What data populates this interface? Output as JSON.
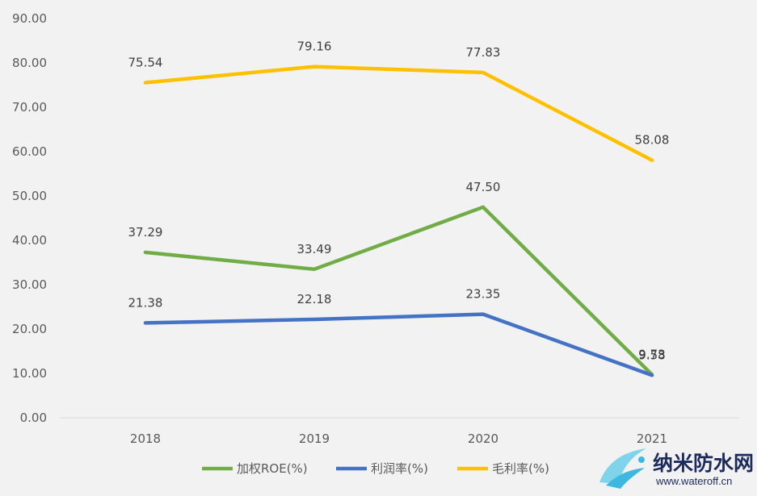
{
  "chart_data": {
    "type": "line",
    "categories": [
      "2018",
      "2019",
      "2020",
      "2021"
    ],
    "ylim": [
      0,
      90
    ],
    "y_ticks": [
      "0.00",
      "10.00",
      "20.00",
      "30.00",
      "40.00",
      "50.00",
      "60.00",
      "70.00",
      "80.00",
      "90.00"
    ],
    "grid": false,
    "legend_position": "bottom",
    "series": [
      {
        "name": "加权ROE(%)",
        "color": "#70ad47",
        "values": [
          37.29,
          33.49,
          47.5,
          9.73
        ],
        "labels": [
          "37.29",
          "33.49",
          "47.50",
          "9.73"
        ]
      },
      {
        "name": "利润率(%)",
        "color": "#4472c4",
        "values": [
          21.38,
          22.18,
          23.35,
          9.58
        ],
        "labels": [
          "21.38",
          "22.18",
          "23.35",
          "9.58"
        ]
      },
      {
        "name": "毛利率(%)",
        "color": "#ffc000",
        "values": [
          75.54,
          79.16,
          77.83,
          58.08
        ],
        "labels": [
          "75.54",
          "79.16",
          "77.83",
          "58.08"
        ]
      }
    ]
  },
  "watermark": {
    "name": "纳米防水网",
    "url": "www.wateroff.cn",
    "icon": "water-splash-logo-icon",
    "color": "#1c2a5c"
  }
}
